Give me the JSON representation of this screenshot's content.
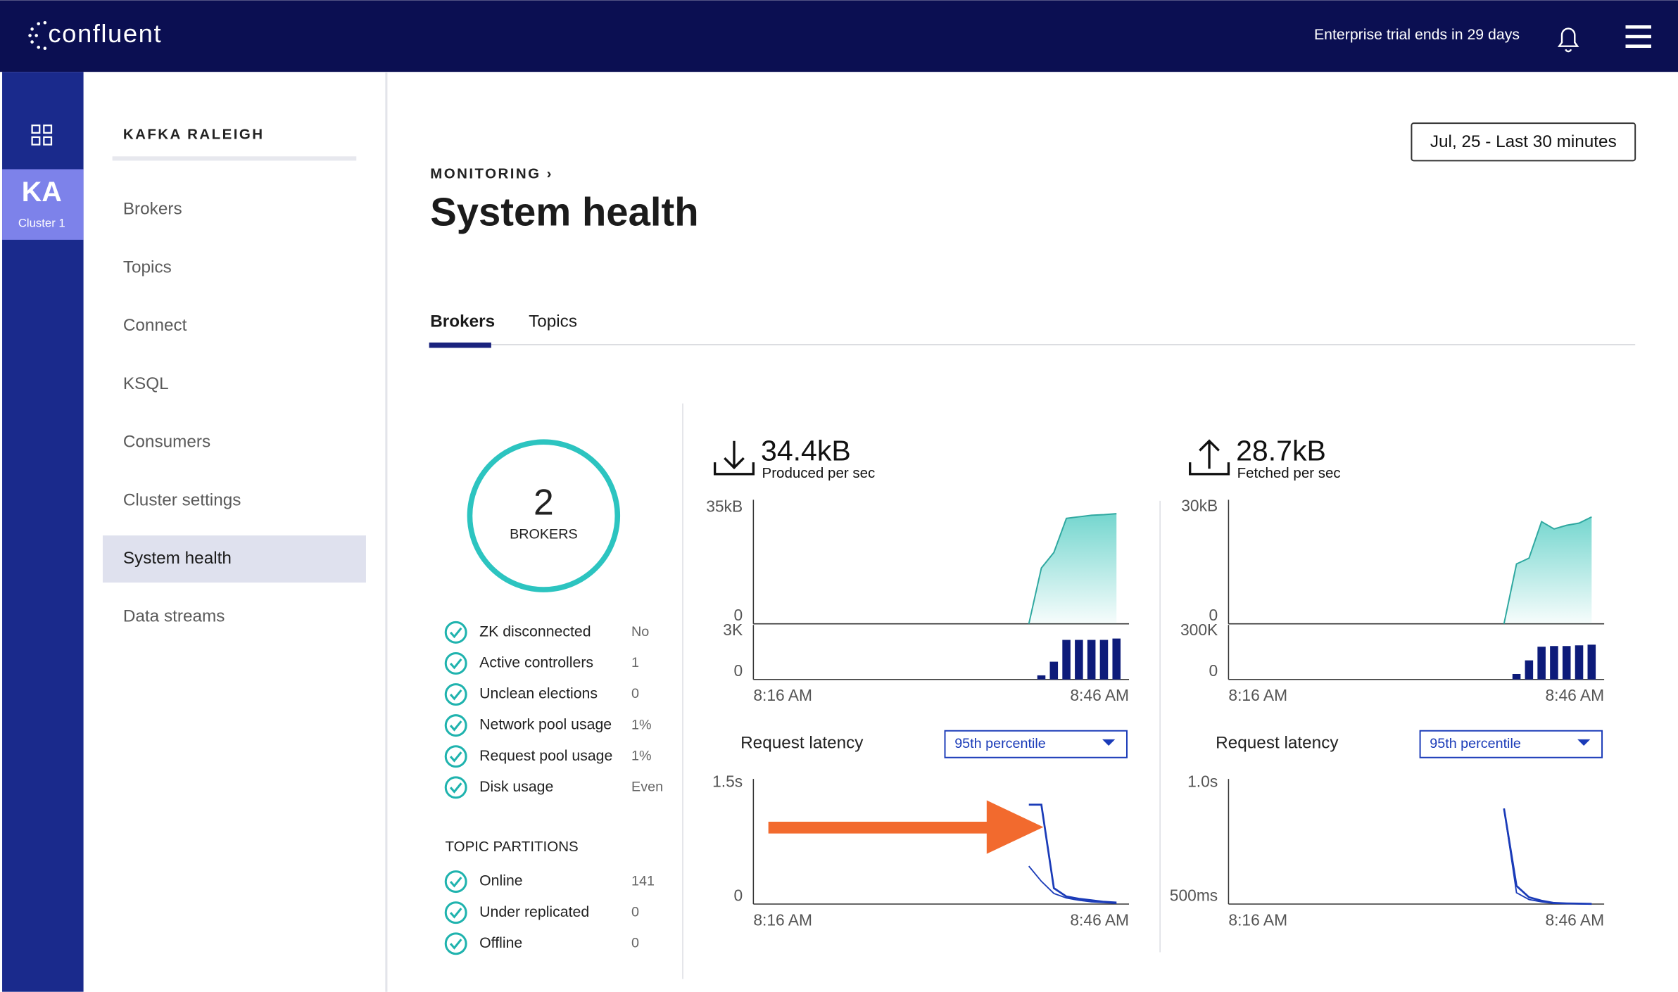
{
  "header": {
    "logo": "confluent",
    "trial": "Enterprise trial ends in 29 days"
  },
  "nav": {
    "cluster_abbr": "KA",
    "cluster_label": "Cluster 1"
  },
  "sidebar": {
    "title": "KAFKA RALEIGH",
    "items": [
      "Brokers",
      "Topics",
      "Connect",
      "KSQL",
      "Consumers",
      "Cluster settings",
      "System health",
      "Data streams"
    ],
    "active": 6
  },
  "page": {
    "breadcrumb": "MONITORING ›",
    "title": "System health",
    "date_range": "Jul, 25 - Last 30 minutes",
    "tabs": [
      "Brokers",
      "Topics"
    ],
    "active_tab": 0
  },
  "brokers": {
    "count": 2,
    "label": "BROKERS",
    "stats": [
      {
        "label": "ZK disconnected",
        "value": "No"
      },
      {
        "label": "Active controllers",
        "value": "1"
      },
      {
        "label": "Unclean elections",
        "value": "0"
      },
      {
        "label": "Network pool usage",
        "value": "1%"
      },
      {
        "label": "Request pool usage",
        "value": "1%"
      },
      {
        "label": "Disk usage",
        "value": "Even"
      }
    ],
    "partitions_title": "TOPIC PARTITIONS",
    "partitions": [
      {
        "label": "Online",
        "value": "141"
      },
      {
        "label": "Under replicated",
        "value": "0"
      },
      {
        "label": "Offline",
        "value": "0"
      }
    ]
  },
  "panels": [
    {
      "value": "34.4kB",
      "label": "Produced per sec",
      "categories": [
        "8:16 AM",
        null,
        null,
        null,
        null,
        null,
        null,
        null,
        null,
        null,
        null,
        null,
        null,
        null,
        null,
        null,
        null,
        null,
        null,
        null,
        null,
        null,
        null,
        null,
        null,
        null,
        null,
        null,
        null,
        null,
        "8:46 AM"
      ],
      "throughput": {
        "ylim": [
          0,
          40
        ],
        "yticks": [
          0,
          {
            "value": 35,
            "label": "35kB"
          }
        ],
        "color": "#5ccfc6",
        "values": [
          null,
          null,
          null,
          null,
          null,
          null,
          null,
          null,
          null,
          null,
          null,
          null,
          null,
          null,
          null,
          null,
          null,
          null,
          null,
          null,
          null,
          null,
          0,
          18,
          23,
          34,
          34.5,
          35,
          35.2,
          35.5,
          null
        ]
      },
      "requests": {
        "ylim": [
          0,
          4
        ],
        "yticks": [
          0,
          {
            "value": 3,
            "label": "3K"
          }
        ],
        "color": "#0d1b7a",
        "values": [
          null,
          null,
          null,
          null,
          null,
          null,
          null,
          null,
          null,
          null,
          null,
          null,
          null,
          null,
          null,
          null,
          null,
          null,
          null,
          null,
          null,
          null,
          null,
          0.3,
          1.3,
          2.9,
          2.9,
          2.9,
          2.9,
          3.0,
          null
        ]
      },
      "latency_title": "Request latency",
      "percentile": "95th percentile",
      "latency": {
        "ylim": [
          0,
          1.65
        ],
        "yticks": [
          0,
          {
            "value": 1.5,
            "label": "1.5s"
          }
        ],
        "series": [
          {
            "color": "#1a3bb8",
            "values": [
              null,
              null,
              null,
              null,
              null,
              null,
              null,
              null,
              null,
              null,
              null,
              null,
              null,
              null,
              null,
              null,
              null,
              null,
              null,
              null,
              null,
              null,
              1.31,
              1.31,
              0.21,
              0.1,
              0.07,
              0.05,
              0.03,
              0.02,
              null
            ]
          },
          {
            "color": "#1a3bb8",
            "values": [
              null,
              null,
              null,
              null,
              null,
              null,
              null,
              null,
              null,
              null,
              null,
              null,
              null,
              null,
              null,
              null,
              null,
              null,
              null,
              null,
              null,
              null,
              0.5,
              0.3,
              0.14,
              0.08,
              0.05,
              0.03,
              0.02,
              0.01,
              null
            ]
          }
        ]
      }
    },
    {
      "value": "28.7kB",
      "label": "Fetched per sec",
      "categories": [
        "8:16 AM",
        null,
        null,
        null,
        null,
        null,
        null,
        null,
        null,
        null,
        null,
        null,
        null,
        null,
        null,
        null,
        null,
        null,
        null,
        null,
        null,
        null,
        null,
        null,
        null,
        null,
        null,
        null,
        null,
        null,
        "8:46 AM"
      ],
      "throughput": {
        "ylim": [
          0,
          34
        ],
        "yticks": [
          0,
          {
            "value": 30,
            "label": "30kB"
          }
        ],
        "color": "#5ccfc6",
        "values": [
          null,
          null,
          null,
          null,
          null,
          null,
          null,
          null,
          null,
          null,
          null,
          null,
          null,
          null,
          null,
          null,
          null,
          null,
          null,
          null,
          null,
          null,
          0,
          16.4,
          18,
          28,
          26,
          27,
          27.6,
          29.3,
          null
        ]
      },
      "requests": {
        "ylim": [
          0,
          400
        ],
        "yticks": [
          0,
          {
            "value": 300,
            "label": "300K"
          }
        ],
        "color": "#0d1b7a",
        "values": [
          null,
          null,
          null,
          null,
          null,
          null,
          null,
          null,
          null,
          null,
          null,
          null,
          null,
          null,
          null,
          null,
          null,
          null,
          null,
          null,
          null,
          null,
          null,
          40,
          140,
          240,
          245,
          245,
          250,
          255,
          null
        ]
      },
      "latency_title": "Request latency",
      "percentile": "95th percentile",
      "latency": {
        "ylim": [
          0.5,
          1.05
        ],
        "yticks": [
          {
            "value": 0.5,
            "label": "500ms"
          },
          {
            "value": 1,
            "label": "1.0s"
          }
        ],
        "series": [
          {
            "color": "#1a3bb8",
            "values": [
              null,
              null,
              null,
              null,
              null,
              null,
              null,
              null,
              null,
              null,
              null,
              null,
              null,
              null,
              null,
              null,
              null,
              null,
              null,
              null,
              null,
              null,
              0.92,
              0.58,
              0.53,
              0.515,
              0.505,
              0.503,
              0.502,
              0.501,
              null
            ]
          },
          {
            "color": "#1a3bb8",
            "values": [
              null,
              null,
              null,
              null,
              null,
              null,
              null,
              null,
              null,
              null,
              null,
              null,
              null,
              null,
              null,
              null,
              null,
              null,
              null,
              null,
              null,
              null,
              0.92,
              0.55,
              0.52,
              0.51,
              0.503,
              0.502,
              0.501,
              0.5,
              null
            ]
          }
        ]
      }
    }
  ]
}
